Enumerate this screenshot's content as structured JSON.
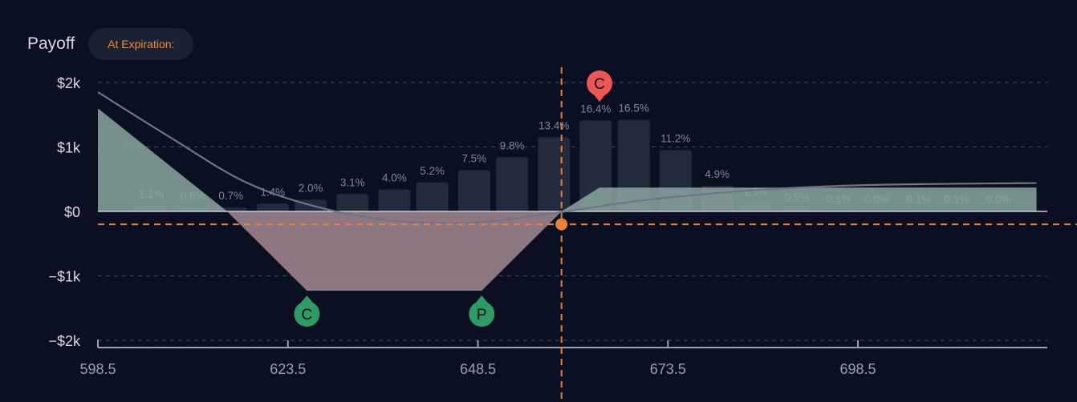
{
  "header": {
    "title": "Payoff",
    "mode_label": "At Expiration:"
  },
  "chart_data": {
    "type": "area",
    "x_ticks": [
      598.5,
      623.5,
      648.5,
      673.5,
      698.5
    ],
    "x_tick_labels": [
      "598.5",
      "623.5",
      "648.5",
      "673.5",
      "698.5"
    ],
    "xlim": [
      598.5,
      722
    ],
    "y_ticks": [
      2000,
      1000,
      0,
      -1000,
      -2000
    ],
    "y_tick_labels": [
      "$2k",
      "$1k",
      "$0",
      "−$1k",
      "−$2k"
    ],
    "ylim": [
      -2000,
      2000
    ],
    "grid": true,
    "current_price": 659.5,
    "breakeven_y": -200,
    "expiration_payoff": [
      {
        "x": 598.5,
        "y": 1600
      },
      {
        "x": 615.5,
        "y": 0
      },
      {
        "x": 626.0,
        "y": -1230
      },
      {
        "x": 649.0,
        "y": -1230
      },
      {
        "x": 659.5,
        "y": 0
      },
      {
        "x": 664.5,
        "y": 370
      },
      {
        "x": 722.0,
        "y": 370
      }
    ],
    "current_payoff": [
      {
        "x": 598.5,
        "y": 1850
      },
      {
        "x": 608.0,
        "y": 1150
      },
      {
        "x": 618.0,
        "y": 450
      },
      {
        "x": 628.0,
        "y": 50
      },
      {
        "x": 638.0,
        "y": -150
      },
      {
        "x": 648.0,
        "y": -170
      },
      {
        "x": 659.5,
        "y": -10
      },
      {
        "x": 670.0,
        "y": 170
      },
      {
        "x": 685.0,
        "y": 330
      },
      {
        "x": 700.0,
        "y": 410
      },
      {
        "x": 722.0,
        "y": 440
      }
    ],
    "probability_bars": {
      "centers": [
        605.5,
        611.0,
        616.0,
        621.5,
        626.5,
        632.0,
        637.5,
        642.5,
        648.0,
        653.0,
        658.5,
        664.0,
        669.0,
        674.5,
        680.0,
        685.0,
        690.5,
        696.0,
        701.0,
        706.5,
        711.5,
        717.0
      ],
      "heights": [
        90,
        60,
        60,
        120,
        180,
        270,
        340,
        450,
        640,
        840,
        1150,
        1410,
        1420,
        950,
        400,
        120,
        40,
        10,
        5,
        5,
        5,
        5
      ],
      "labels": [
        "1.1%",
        "0.6%",
        "0.7%",
        "1.4%",
        "2.0%",
        "3.1%",
        "4.0%",
        "5.2%",
        "7.5%",
        "9.8%",
        "13.4%",
        "16.4%",
        "16.5%",
        "11.2%",
        "4.9%",
        "1.5%",
        "0.5%",
        "0.1%",
        "0.0%",
        "0.1%",
        "0.1%",
        "0.0%"
      ]
    },
    "markers": [
      {
        "label": "C",
        "type": "short-call",
        "color": "#ee5555",
        "x": 664.5,
        "y": 2000,
        "direction": "up"
      },
      {
        "label": "C",
        "type": "long-call",
        "color": "#2e9a64",
        "x": 626.0,
        "y": -1230,
        "direction": "down"
      },
      {
        "label": "P",
        "type": "long-put",
        "color": "#2e9a64",
        "x": 649.0,
        "y": -1230,
        "direction": "down"
      }
    ],
    "colors": {
      "profit": "#8ba79d",
      "loss": "#a48a92",
      "bar": "#232a3d",
      "curve": "#6e7489",
      "crosshair": "#e6823a",
      "grid": "#3a4054",
      "axis": "#9aa0b1"
    }
  }
}
